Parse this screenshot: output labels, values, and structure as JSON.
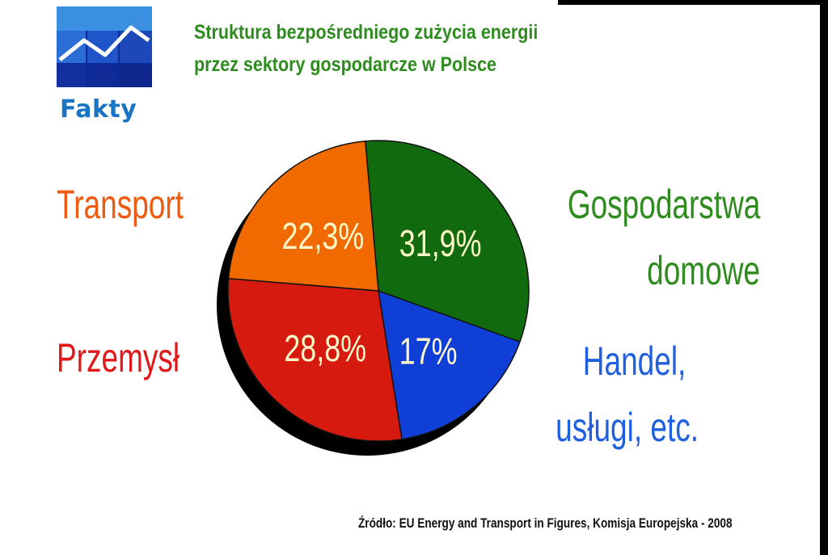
{
  "logo": {
    "text": "Fakty"
  },
  "header": {
    "title_line1": "Struktura bezpośredniego zużycia energii",
    "title_line2": "przez sektory gospodarcze w Polsce"
  },
  "colors": {
    "title": "#2e8b1e",
    "logo_blue": "#1a74c4",
    "transport": "#f06a00",
    "gospodarstwa": "#116b0e",
    "handel": "#0f3fd6",
    "przemysl": "#d61a10"
  },
  "chart_data": {
    "type": "pie",
    "title": "Struktura bezpośredniego zużycia energii przez sektory gospodarcze w Polsce",
    "slices": [
      {
        "name": "Gospodarstwa domowe",
        "label_lines": [
          "Gospodarstwa",
          "domowe"
        ],
        "value": 31.9,
        "value_label": "31,9%",
        "color": "#116b0e",
        "label_color": "#2e8b1e"
      },
      {
        "name": "Handel, usługi, etc.",
        "label_lines": [
          "Handel,",
          "usługi, etc."
        ],
        "value": 17,
        "value_label": "17%",
        "color": "#0f3fd6",
        "label_color": "#1f5fe0"
      },
      {
        "name": "Przemysł",
        "label_lines": [
          "Przemysł"
        ],
        "value": 28.8,
        "value_label": "28,8%",
        "color": "#d61a10",
        "label_color": "#e0181a"
      },
      {
        "name": "Transport",
        "label_lines": [
          "Transport"
        ],
        "value": 22.3,
        "value_label": "22,3%",
        "color": "#f06a00",
        "label_color": "#f05a10"
      }
    ]
  },
  "source": "Źródło: EU Energy and Transport in Figures, Komisja Europejska - 2008"
}
